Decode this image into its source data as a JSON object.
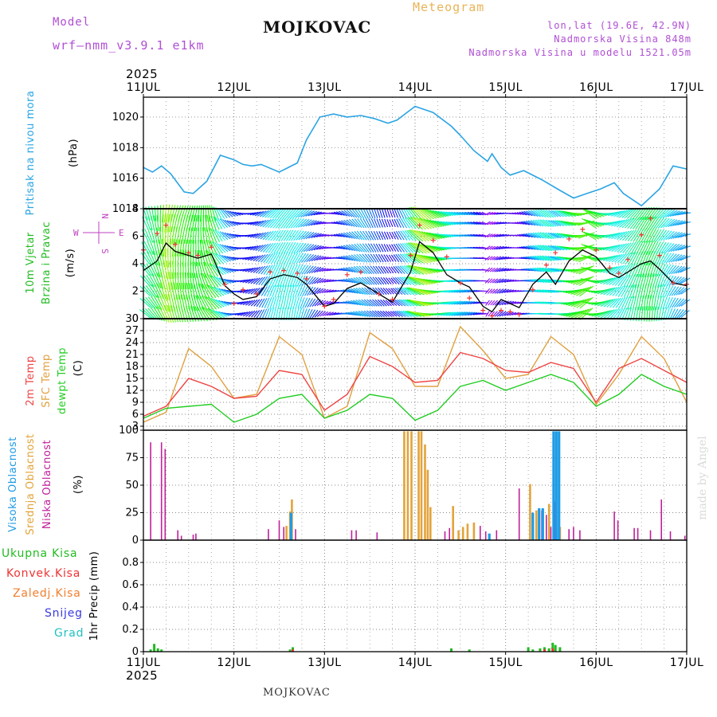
{
  "header": {
    "model_label": "Model",
    "model_name": "wrf–nmm_v3.9.1  e1km",
    "location": "MOJKOVAC",
    "product": "Meteogram",
    "lonlat": "lon,lat (19.6E, 42.9N)",
    "elevation": "Nadmorska Visina 848m",
    "model_elevation": "Nadmorska Visina u modelu 1521.05m"
  },
  "footer": {
    "location": "MOJKOVAC"
  },
  "credit": "made by Angel",
  "colors": {
    "pressure": "#2aa4e4",
    "temp2m": "#ee4444",
    "sfc_temp": "#e0a040",
    "dewpoint": "#22cc22",
    "high_cloud": "#1e9be6",
    "mid_cloud": "#e3a33a",
    "low_cloud": "#c0209a",
    "total_precip": "#22bb22",
    "conv_precip": "#ee3333",
    "frozen_precip": "#f08030",
    "snow": "#3a3ae0",
    "hail": "#22c0c0",
    "wind_speed_line": "#000000",
    "gust_marker": "#ee3333"
  },
  "time_axis": {
    "year": "2025",
    "ticks": [
      "11JUL",
      "12JUL",
      "13JUL",
      "14JUL",
      "15JUL",
      "16JUL",
      "17JUL"
    ]
  },
  "chart_data": [
    {
      "type": "line",
      "panel": "pressure",
      "ylabel_left": "Pritisak na nivou mora",
      "ylabel_unit": "(hPa)",
      "ylim": [
        1014,
        1021.3
      ],
      "yticks": [
        1014,
        1016,
        1018,
        1020
      ],
      "grid": true,
      "x": [
        0,
        0.1,
        0.2,
        0.3,
        0.45,
        0.55,
        0.7,
        0.85,
        1.0,
        1.1,
        1.2,
        1.3,
        1.5,
        1.7,
        1.8,
        1.95,
        2.1,
        2.25,
        2.4,
        2.55,
        2.7,
        2.8,
        3.0,
        3.2,
        3.4,
        3.5,
        3.65,
        3.8,
        3.85,
        3.95,
        4.05,
        4.2,
        4.4,
        4.6,
        4.75,
        4.9,
        5.05,
        5.2,
        5.3,
        5.5,
        5.7,
        5.85,
        6.0
      ],
      "series": [
        {
          "values": [
            1016.7,
            1016.4,
            1016.8,
            1016.3,
            1015.1,
            1015.0,
            1015.8,
            1017.5,
            1017.2,
            1016.9,
            1016.8,
            1016.9,
            1016.4,
            1017.0,
            1018.5,
            1020.0,
            1020.2,
            1020.0,
            1020.1,
            1019.9,
            1019.6,
            1019.8,
            1020.7,
            1020.3,
            1019.4,
            1018.8,
            1017.8,
            1017.1,
            1017.6,
            1016.7,
            1016.2,
            1016.5,
            1015.9,
            1015.2,
            1014.7,
            1015.0,
            1015.3,
            1015.7,
            1015.0,
            1014.2,
            1015.3,
            1016.8,
            1016.6
          ]
        }
      ]
    },
    {
      "type": "line",
      "panel": "wind",
      "ylabel_left": "10m Vjetar",
      "ylabel_left2": "Brzina i Pravac",
      "ylabel_unit": "(m/s)",
      "compass": {
        "west": "W",
        "east": "E",
        "north": "N",
        "south": "S"
      },
      "ylim": [
        0,
        8
      ],
      "yticks": [
        0,
        2,
        4,
        6,
        8
      ],
      "grid": true,
      "x": [
        0,
        0.15,
        0.25,
        0.35,
        0.5,
        0.6,
        0.75,
        0.9,
        1.0,
        1.1,
        1.25,
        1.4,
        1.55,
        1.7,
        1.8,
        2.0,
        2.1,
        2.25,
        2.4,
        2.6,
        2.75,
        2.95,
        3.05,
        3.2,
        3.35,
        3.5,
        3.6,
        3.75,
        3.85,
        3.95,
        4.05,
        4.15,
        4.3,
        4.45,
        4.55,
        4.7,
        4.85,
        5.0,
        5.15,
        5.25,
        5.35,
        5.5,
        5.6,
        5.7,
        5.85,
        6.0
      ],
      "series": [
        {
          "name": "speed",
          "values": [
            3.5,
            4.2,
            5.5,
            4.9,
            4.6,
            4.4,
            4.7,
            2.4,
            1.8,
            1.4,
            1.6,
            2.9,
            3.2,
            3.0,
            2.5,
            0.9,
            1.1,
            2.2,
            2.6,
            1.8,
            1.2,
            3.4,
            5.6,
            4.8,
            3.2,
            2.6,
            2.3,
            0.9,
            0.5,
            1.4,
            1.1,
            0.8,
            2.5,
            3.4,
            2.5,
            4.2,
            5.0,
            4.5,
            3.3,
            3.0,
            3.4,
            4.0,
            4.2,
            3.6,
            2.6,
            2.4
          ]
        },
        {
          "name": "gust",
          "values": [
            5.0,
            6.2,
            6.8,
            5.4,
            4.8,
            4.6,
            5.2,
            2.5,
            1.1,
            2.1,
            1.8,
            3.4,
            3.5,
            3.3,
            2.9,
            0.9,
            1.4,
            3.2,
            3.4,
            1.8,
            1.4,
            4.6,
            6.8,
            5.7,
            4.5,
            2.6,
            1.5,
            0.6,
            0.2,
            0.6,
            0.5,
            0.3,
            2.1,
            3.9,
            4.8,
            5.8,
            6.5,
            5.0,
            3.7,
            3.3,
            4.3,
            6.1,
            7.3,
            4.6,
            2.6,
            2.5
          ]
        }
      ]
    },
    {
      "type": "line",
      "panel": "temperature",
      "ylabel_left": "2m Temp",
      "ylabel_left2": "SFC Temp",
      "ylabel_left3": "dewpt Temp",
      "ylabel_unit": "(C)",
      "ylim": [
        2,
        30
      ],
      "yticks": [
        3,
        6,
        9,
        12,
        15,
        18,
        21,
        24,
        27,
        30
      ],
      "grid": true,
      "x": [
        0,
        0.25,
        0.5,
        0.75,
        1.0,
        1.25,
        1.5,
        1.75,
        2.0,
        2.25,
        2.5,
        2.75,
        3.0,
        3.25,
        3.5,
        3.75,
        4.0,
        4.25,
        4.5,
        4.75,
        5.0,
        5.25,
        5.5,
        5.75,
        6.0
      ],
      "series": [
        {
          "name": "2m Temp",
          "values": [
            5.5,
            8,
            15,
            13,
            10,
            10.5,
            17,
            16,
            7,
            11,
            20.5,
            18,
            14,
            14.5,
            21.5,
            20,
            17,
            16.5,
            19,
            17.5,
            9,
            17.5,
            20,
            17,
            14
          ]
        },
        {
          "name": "SFC Temp",
          "values": [
            4,
            6.5,
            22.5,
            18,
            10,
            11,
            25.5,
            21,
            5,
            8,
            26.5,
            22.5,
            13,
            13,
            28,
            22,
            15,
            16,
            25.5,
            21,
            8.5,
            16,
            25.5,
            20,
            9
          ]
        },
        {
          "name": "dewpt Temp",
          "values": [
            5,
            7.5,
            8,
            8.5,
            4,
            6,
            10,
            11,
            5,
            7,
            11,
            10,
            4.5,
            7,
            13,
            14.5,
            12,
            14,
            16,
            14,
            8,
            11,
            16,
            13,
            11
          ]
        }
      ]
    },
    {
      "type": "bar",
      "panel": "cloud",
      "ylabel_left": "Visoka Oblacnost",
      "ylabel_left2": "Srednja Oblacnost",
      "ylabel_left3": "Niska Oblacnost",
      "ylabel_unit": "(%)",
      "ylim": [
        0,
        100
      ],
      "yticks": [
        0,
        25,
        50,
        75,
        100
      ],
      "grid": true,
      "series": [
        {
          "name": "Niska Oblacnost",
          "bars": [
            [
              0.08,
              89
            ],
            [
              0.2,
              89
            ],
            [
              0.24,
              83
            ],
            [
              0.38,
              9
            ],
            [
              0.42,
              4
            ],
            [
              0.55,
              5
            ],
            [
              0.58,
              6
            ],
            [
              1.38,
              10
            ],
            [
              1.5,
              18
            ],
            [
              1.55,
              12
            ],
            [
              1.62,
              17
            ],
            [
              1.68,
              10
            ],
            [
              2.3,
              9
            ],
            [
              2.35,
              9
            ],
            [
              2.58,
              7
            ],
            [
              3.33,
              8
            ],
            [
              3.38,
              11
            ],
            [
              3.72,
              13
            ],
            [
              3.78,
              8
            ],
            [
              3.9,
              9
            ],
            [
              4.15,
              47
            ],
            [
              4.4,
              27
            ],
            [
              4.45,
              23
            ],
            [
              4.5,
              12
            ],
            [
              4.55,
              35
            ],
            [
              4.7,
              10
            ],
            [
              4.75,
              12
            ],
            [
              4.82,
              9
            ],
            [
              5.2,
              26
            ],
            [
              5.24,
              18
            ],
            [
              5.42,
              11
            ],
            [
              5.46,
              11
            ],
            [
              5.6,
              9
            ],
            [
              5.72,
              37
            ],
            [
              5.82,
              8
            ],
            [
              5.98,
              4
            ]
          ]
        },
        {
          "name": "Srednja Oblacnost",
          "bars": [
            [
              1.58,
              13
            ],
            [
              1.62,
              26
            ],
            [
              1.64,
              37
            ],
            [
              2.88,
              99
            ],
            [
              2.92,
              99
            ],
            [
              2.96,
              99
            ],
            [
              3.04,
              99
            ],
            [
              3.07,
              99
            ],
            [
              3.11,
              87
            ],
            [
              3.14,
              64
            ],
            [
              3.17,
              30
            ],
            [
              3.42,
              31
            ],
            [
              3.48,
              9
            ],
            [
              3.53,
              12
            ],
            [
              3.58,
              15
            ],
            [
              3.65,
              16
            ],
            [
              4.27,
              51
            ],
            [
              4.34,
              27
            ],
            [
              4.48,
              33
            ],
            [
              4.56,
              30
            ],
            [
              4.6,
              12
            ]
          ]
        },
        {
          "name": "Visoka Oblacnost",
          "bars": [
            [
              1.63,
              25
            ],
            [
              3.82,
              6
            ],
            [
              4.3,
              25
            ],
            [
              4.37,
              29
            ],
            [
              4.41,
              29
            ],
            [
              4.53,
              99
            ],
            [
              4.56,
              99
            ],
            [
              4.59,
              99
            ]
          ]
        }
      ]
    },
    {
      "type": "bar",
      "panel": "precip",
      "ylabel_left": "Ukupna Kisa",
      "ylabel_left2": "Konvek.Kisa",
      "ylabel_left3": "Zaledj.Kisa",
      "ylabel_left4": "Snijeg",
      "ylabel_left5": "Grad",
      "ylabel_unit": "1hr Precip (mm)",
      "ylim": [
        0,
        1.0
      ],
      "yticks": [
        0,
        0.2,
        0.4,
        0.6,
        0.8
      ],
      "grid": true,
      "series": [
        {
          "name": "Ukupna Kisa",
          "bars": [
            [
              0.08,
              0.02
            ],
            [
              0.12,
              0.07
            ],
            [
              0.16,
              0.03
            ],
            [
              0.2,
              0.02
            ],
            [
              1.62,
              0.02
            ],
            [
              1.65,
              0.04
            ],
            [
              3.4,
              0.03
            ],
            [
              3.6,
              0.02
            ],
            [
              4.25,
              0.04
            ],
            [
              4.3,
              0.02
            ],
            [
              4.38,
              0.03
            ],
            [
              4.43,
              0.04
            ],
            [
              4.48,
              0.03
            ],
            [
              4.52,
              0.08
            ],
            [
              4.55,
              0.06
            ],
            [
              4.6,
              0.04
            ]
          ]
        },
        {
          "name": "Konvek.Kisa",
          "bars": [
            [
              1.65,
              0.02
            ],
            [
              4.43,
              0.02
            ],
            [
              4.52,
              0.03
            ]
          ]
        }
      ]
    }
  ]
}
